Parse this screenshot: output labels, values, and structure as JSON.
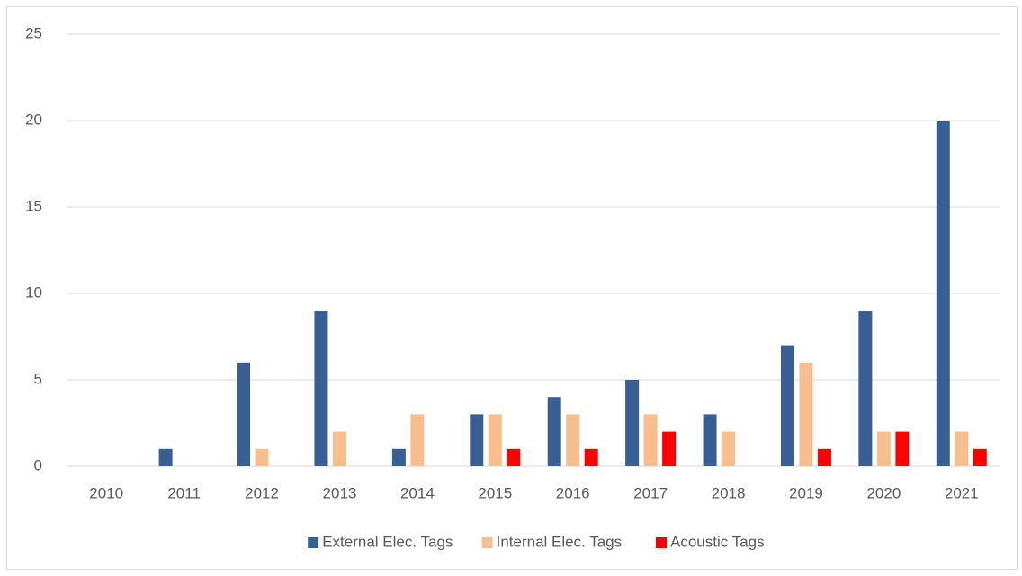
{
  "chart_data": {
    "type": "bar",
    "categories": [
      "2010",
      "2011",
      "2012",
      "2013",
      "2014",
      "2015",
      "2016",
      "2017",
      "2018",
      "2019",
      "2020",
      "2021"
    ],
    "series": [
      {
        "name": "External Elec. Tags",
        "color": "#375f93",
        "values": [
          0,
          1,
          6,
          9,
          1,
          3,
          4,
          5,
          3,
          7,
          9,
          20
        ]
      },
      {
        "name": "Internal Elec. Tags",
        "color": "#f9be8e",
        "values": [
          0,
          0,
          1,
          2,
          3,
          3,
          3,
          3,
          2,
          6,
          2,
          2
        ]
      },
      {
        "name": "Acoustic Tags",
        "color": "#ff0000",
        "values": [
          0,
          0,
          0,
          0,
          0,
          1,
          1,
          2,
          0,
          1,
          2,
          1
        ]
      }
    ],
    "ylim": [
      0,
      25
    ],
    "yticks": [
      0,
      5,
      10,
      15,
      20,
      25
    ],
    "grid": true,
    "legend": "bottom"
  }
}
